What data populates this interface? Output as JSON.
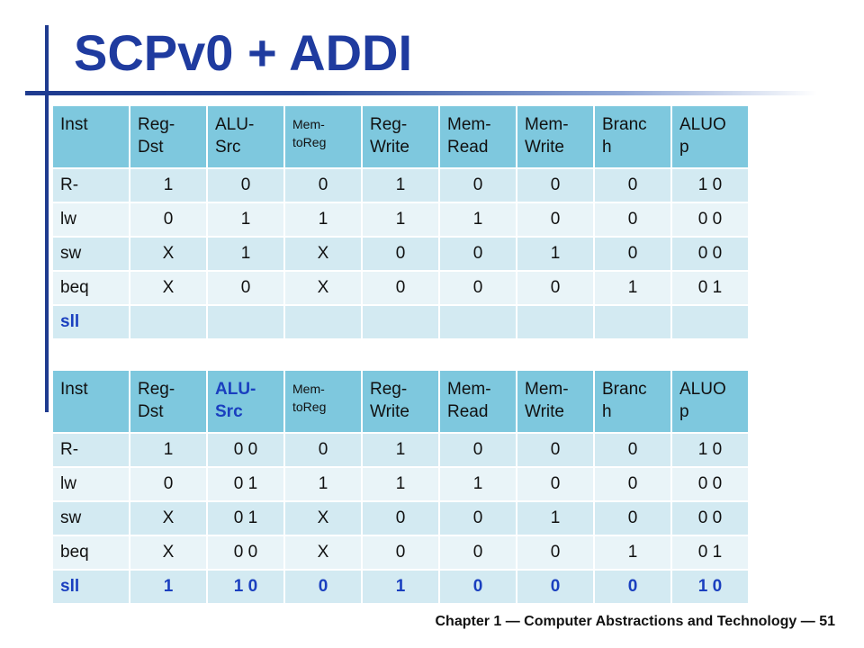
{
  "slide": {
    "title": "SCPv0 + ADDI",
    "footer": "Chapter 1 — Computer Abstractions and Technology — 51"
  },
  "colors": {
    "title": "#1f3b9f",
    "header_fill": "#7ec8de",
    "row_dark": "#d3eaf2",
    "row_light": "#e9f4f8",
    "highlight_text": "#1a3fbf"
  },
  "table1": {
    "headers": [
      [
        "Inst"
      ],
      [
        "Reg-",
        "Dst"
      ],
      [
        "ALU-",
        "Src"
      ],
      [
        "Mem-",
        "toReg"
      ],
      [
        "Reg-",
        "Write"
      ],
      [
        "Mem-",
        "Read"
      ],
      [
        "Mem-",
        "Write"
      ],
      [
        "Branc",
        "h"
      ],
      [
        "ALUO",
        "p"
      ]
    ],
    "rows": [
      [
        "R-",
        "1",
        "0",
        "0",
        "1",
        "0",
        "0",
        "0",
        "1 0"
      ],
      [
        "lw",
        "0",
        "1",
        "1",
        "1",
        "1",
        "0",
        "0",
        "0 0"
      ],
      [
        "sw",
        "X",
        "1",
        "X",
        "0",
        "0",
        "1",
        "0",
        "0 0"
      ],
      [
        "beq",
        "X",
        "0",
        "X",
        "0",
        "0",
        "0",
        "1",
        "0 1"
      ],
      [
        "sll",
        "",
        "",
        "",
        "",
        "",
        "",
        "",
        ""
      ]
    ]
  },
  "table2": {
    "headers": [
      [
        "Inst"
      ],
      [
        "Reg-",
        "Dst"
      ],
      [
        "ALU-",
        "Src"
      ],
      [
        "Mem-",
        "toReg"
      ],
      [
        "Reg-",
        "Write"
      ],
      [
        "Mem-",
        "Read"
      ],
      [
        "Mem-",
        "Write"
      ],
      [
        "Branc",
        "h"
      ],
      [
        "ALUO",
        "p"
      ]
    ],
    "rows": [
      [
        "R-",
        "1",
        "0 0",
        "0",
        "1",
        "0",
        "0",
        "0",
        "1 0"
      ],
      [
        "lw",
        "0",
        "0 1",
        "1",
        "1",
        "1",
        "0",
        "0",
        "0 0"
      ],
      [
        "sw",
        "X",
        "0 1",
        "X",
        "0",
        "0",
        "1",
        "0",
        "0 0"
      ],
      [
        "beq",
        "X",
        "0 0",
        "X",
        "0",
        "0",
        "0",
        "1",
        "0 1"
      ],
      [
        "sll",
        "1",
        "1 0",
        "0",
        "1",
        "0",
        "0",
        "0",
        "1 0"
      ]
    ]
  }
}
